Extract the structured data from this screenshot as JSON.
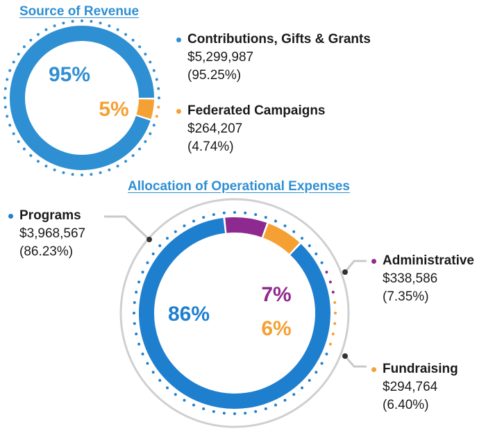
{
  "chart_data": [
    {
      "type": "pie",
      "title": "Source of Revenue",
      "slices": [
        {
          "name": "Contributions, Gifts & Grants",
          "amount": "$5,299,987",
          "percent_text": "(95.25%)",
          "percent": 95.25,
          "label": "95%",
          "color": "#2f8fd3"
        },
        {
          "name": "Federated Campaigns",
          "amount": "$264,207",
          "percent_text": "(4.74%)",
          "percent": 4.74,
          "label": "5%",
          "color": "#f5a033"
        }
      ]
    },
    {
      "type": "pie",
      "title": "Allocation of Operational Expenses",
      "slices": [
        {
          "name": "Programs",
          "amount": "$3,968,567",
          "percent_text": "(86.23%)",
          "percent": 86.23,
          "label": "86%",
          "color": "#1f7fcf"
        },
        {
          "name": "Administrative",
          "amount": "$338,586",
          "percent_text": "(7.35%)",
          "percent": 7.35,
          "label": "7%",
          "color": "#8e2a8f"
        },
        {
          "name": "Fundraising",
          "amount": "$294,764",
          "percent_text": "(6.40%)",
          "percent": 6.4,
          "label": "6%",
          "color": "#f5a033"
        }
      ]
    }
  ]
}
